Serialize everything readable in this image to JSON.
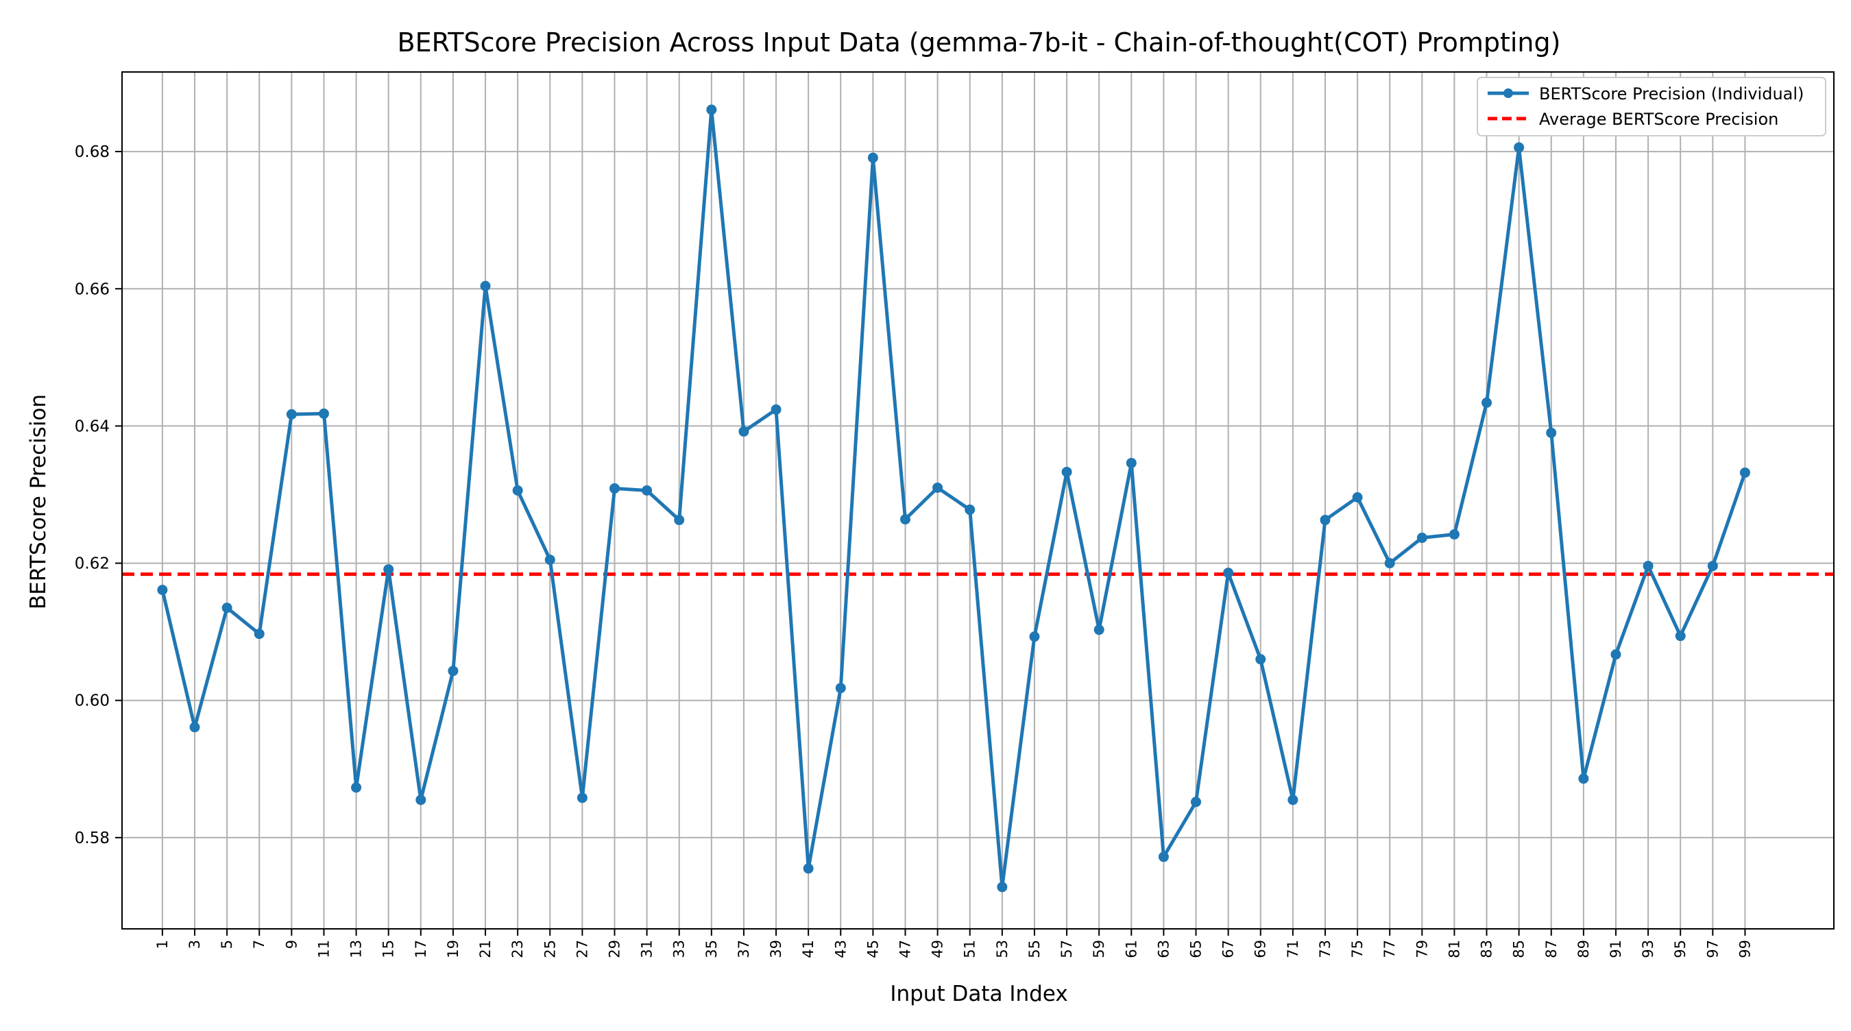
{
  "chart_data": {
    "type": "line",
    "title": "BERTScore Precision Across Input Data (gemma-7b-it - Chain-of-thought(COT) Prompting)",
    "xlabel": "Input Data Index",
    "ylabel": "BERTScore Precision",
    "x": [
      1,
      3,
      5,
      7,
      9,
      11,
      13,
      15,
      17,
      19,
      21,
      23,
      25,
      27,
      29,
      31,
      33,
      35,
      37,
      39,
      41,
      43,
      45,
      47,
      49,
      51,
      53,
      55,
      57,
      59,
      61,
      63,
      65,
      67,
      69,
      71,
      73,
      75,
      77,
      79,
      81,
      83,
      85,
      87,
      89,
      91,
      93,
      95,
      97,
      99
    ],
    "x_ticks": [
      "1",
      "3",
      "5",
      "7",
      "9",
      "11",
      "13",
      "15",
      "17",
      "19",
      "21",
      "23",
      "25",
      "27",
      "29",
      "31",
      "33",
      "35",
      "37",
      "39",
      "41",
      "43",
      "45",
      "47",
      "49",
      "51",
      "53",
      "55",
      "57",
      "59",
      "61",
      "63",
      "65",
      "67",
      "69",
      "71",
      "73",
      "75",
      "77",
      "79",
      "81",
      "83",
      "85",
      "87",
      "89",
      "91",
      "93",
      "95",
      "97",
      "99"
    ],
    "xlim": [
      -1.5,
      104.5
    ],
    "ylim": [
      0.5667,
      0.6916
    ],
    "y_ticks": [
      "0.58",
      "0.60",
      "0.62",
      "0.64",
      "0.66",
      "0.68"
    ],
    "y_tick_values": [
      0.58,
      0.6,
      0.62,
      0.64,
      0.66,
      0.68
    ],
    "grid": true,
    "legend_position": "top-right",
    "series": [
      {
        "name": "BERTScore Precision (Individual)",
        "color": "#1f77b4",
        "style": "solid-with-markers",
        "values": [
          0.6161,
          0.5961,
          0.6135,
          0.6097,
          0.6417,
          0.6418,
          0.5873,
          0.6191,
          0.5855,
          0.6043,
          0.6604,
          0.6306,
          0.6205,
          0.5858,
          0.6309,
          0.6306,
          0.6263,
          0.6861,
          0.6392,
          0.6424,
          0.5755,
          0.6018,
          0.6791,
          0.6264,
          0.631,
          0.6278,
          0.5728,
          0.6093,
          0.6333,
          0.6103,
          0.6346,
          0.5772,
          0.5852,
          0.6186,
          0.606,
          0.5855,
          0.6263,
          0.6296,
          0.62,
          0.6237,
          0.6242,
          0.6434,
          0.6806,
          0.639,
          0.5886,
          0.6067,
          0.6196,
          0.6094,
          0.6196,
          0.6332
        ]
      },
      {
        "name": "Average BERTScore Precision",
        "color": "#ff0000",
        "style": "dashed",
        "value": 0.6184
      }
    ]
  }
}
